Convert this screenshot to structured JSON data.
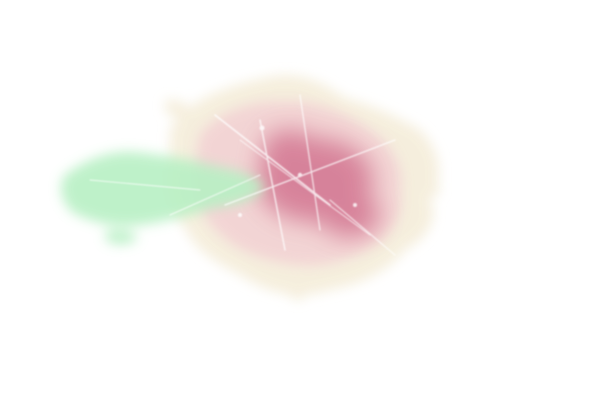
{
  "map": {
    "kind": "density-heat-overlay",
    "background_color": "#ffffff",
    "palette": {
      "outer_fringe": "#f4ecd8",
      "mid_density": "#f2ccd2",
      "high_density": "#d47a94",
      "secondary_cluster": "#b8f0c4",
      "streak_highlight": "#ffffff"
    },
    "regions": [
      {
        "name": "urban-fringe",
        "color": "#f4ecd8"
      },
      {
        "name": "central-density",
        "color": "#f2ccd2"
      },
      {
        "name": "core-hotspot",
        "color": "#d47a94"
      },
      {
        "name": "western-cluster",
        "color": "#b8f0c4"
      }
    ]
  }
}
